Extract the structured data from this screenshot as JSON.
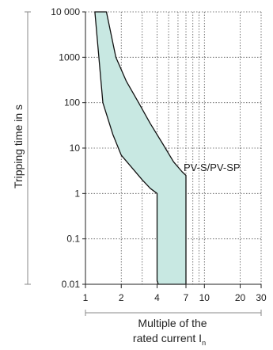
{
  "chart_data": {
    "type": "area",
    "title": "",
    "xlabel_line1": "Multiple of the",
    "xlabel_line2": "rated current I",
    "xlabel_subscript": "n",
    "ylabel": "Tripping time in s",
    "x_scale": "log",
    "y_scale": "log",
    "xlim": [
      1,
      30
    ],
    "ylim": [
      0.01,
      10000
    ],
    "grid": true,
    "x_ticks": [
      1,
      2,
      4,
      7,
      10,
      20,
      30
    ],
    "x_tick_labels": [
      "1",
      "2",
      "4",
      "7",
      "10",
      "20",
      "30"
    ],
    "x_grid": [
      1,
      2,
      3,
      4,
      5,
      6,
      7,
      8,
      9,
      10,
      20,
      30
    ],
    "y_ticks": [
      0.01,
      0.1,
      1,
      10,
      100,
      1000,
      10000
    ],
    "y_tick_labels": [
      "0.01",
      "0.1",
      "1",
      "10",
      "100",
      "1000",
      "10 000"
    ],
    "annotation": "PV-S/PV-SP",
    "fill_color": "#c8e8e2",
    "series": [
      {
        "role": "upper",
        "x": [
          1.5,
          1.8,
          2.2,
          2.8,
          3.5,
          4.5,
          5.5,
          6.5,
          7.0,
          7.0
        ],
        "y": [
          10000,
          1000,
          300,
          100,
          35,
          12,
          5,
          3,
          2.5,
          0.01
        ]
      },
      {
        "role": "lower",
        "x": [
          1.2,
          1.4,
          1.7,
          2.0,
          2.5,
          3.0,
          3.5,
          4.0,
          4.0,
          4.1
        ],
        "y": [
          10000,
          100,
          20,
          7,
          3.5,
          2,
          1.3,
          1.0,
          0.012,
          0.01
        ]
      }
    ]
  }
}
